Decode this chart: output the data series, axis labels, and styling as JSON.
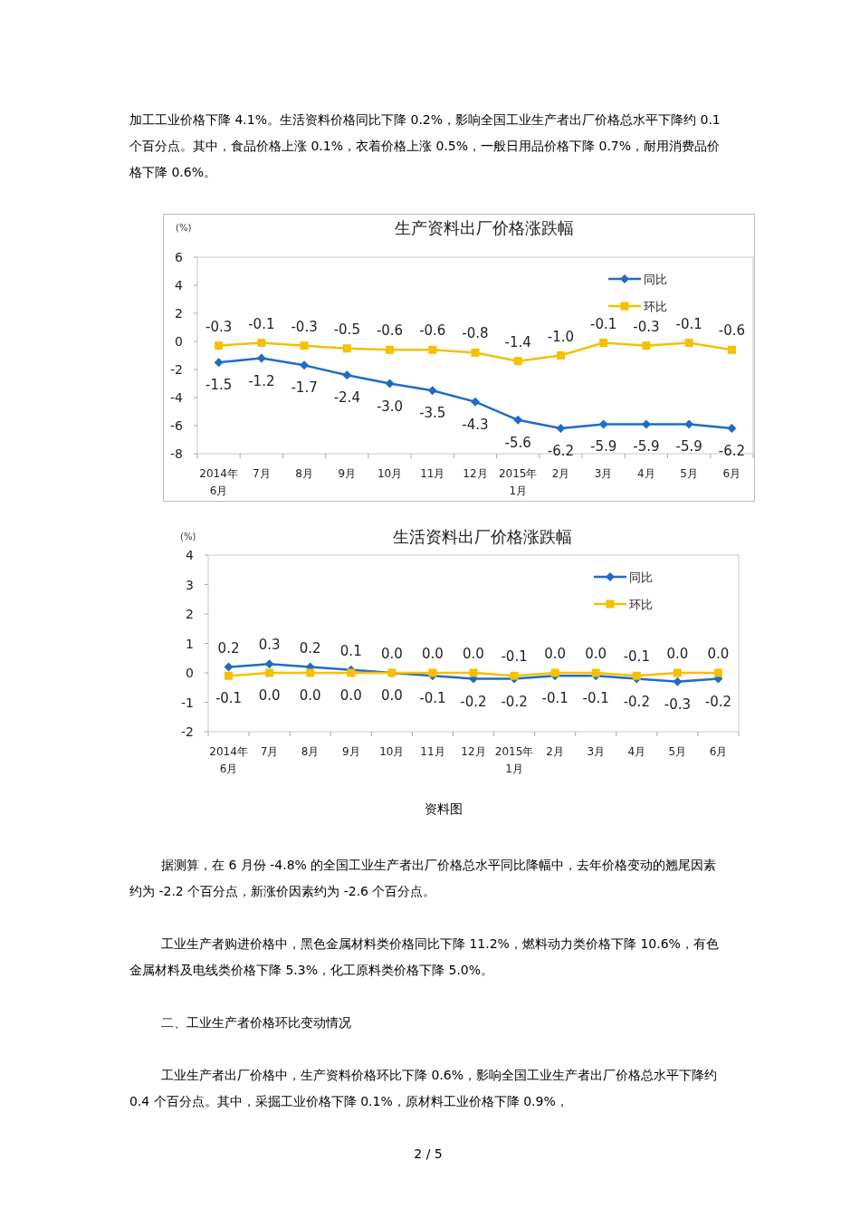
{
  "chart_data": [
    {
      "type": "other",
      "annotations": [
        "加工工业价格下降 4.1%。生活资料价格同比下降 0.2%，影响全国工业生产者出厂价格总水平下降约 0.1 个百分点。其中，食品价格上涨 0.1%，衣着价格上涨 0.5%，一般日用品价格下降 0.7%，耐用消费品价格下降 0.6%。"
      ]
    },
    {
      "type": "line",
      "title": "生产资料出厂价格涨跌幅",
      "ylabel": "(%)",
      "categories": [
        "2014年\n6月",
        "7月",
        "8月",
        "9月",
        "10月",
        "11月",
        "12月",
        "2015年\n1月",
        "2月",
        "3月",
        "4月",
        "5月",
        "6月"
      ],
      "series": [
        {
          "name": "同比",
          "color": "#1f6cc7",
          "marker": "diamond",
          "values": [
            -1.5,
            -1.2,
            -1.7,
            -2.4,
            -3.0,
            -3.5,
            -4.3,
            -5.6,
            -6.2,
            -5.9,
            -5.9,
            -5.9,
            -6.2
          ],
          "value_labels": [
            "-1.5",
            "-1.2",
            "-1.7",
            "-2.4",
            "-3.0",
            "-3.5",
            "-4.3",
            "-5.6",
            "-6.2",
            "-5.9",
            "-5.9",
            "-5.9",
            "-6.2"
          ]
        },
        {
          "name": "环比",
          "color": "#f5c000",
          "marker": "square",
          "values": [
            -0.3,
            -0.1,
            -0.3,
            -0.5,
            -0.6,
            -0.6,
            -0.8,
            -1.4,
            -1.0,
            -0.1,
            -0.3,
            -0.1,
            -0.6
          ],
          "value_labels": [
            "-0.3",
            "-0.1",
            "-0.3",
            "-0.5",
            "-0.6",
            "-0.6",
            "-0.8",
            "-1.4",
            "-1.0",
            "-0.1",
            "-0.3",
            "-0.1",
            "-0.6"
          ]
        }
      ],
      "ylim": [
        -8,
        6
      ],
      "yticks": [
        -8,
        -6,
        -4,
        -2,
        0,
        2,
        4,
        6
      ],
      "grid": false,
      "legend": "top right"
    },
    {
      "type": "line",
      "title": "生活资料出厂价格涨跌幅",
      "ylabel": "(%)",
      "categories": [
        "2014年\n6月",
        "7月",
        "8月",
        "9月",
        "10月",
        "11月",
        "12月",
        "2015年\n1月",
        "2月",
        "3月",
        "4月",
        "5月",
        "6月"
      ],
      "series": [
        {
          "name": "同比",
          "color": "#1f6cc7",
          "marker": "diamond",
          "values": [
            0.2,
            0.3,
            0.2,
            0.1,
            0.0,
            -0.1,
            -0.2,
            -0.2,
            -0.1,
            -0.1,
            -0.2,
            -0.3,
            -0.2
          ],
          "value_labels": [
            "0.2",
            "0.3",
            "0.2",
            "0.1",
            "0.0",
            "-0.1",
            "-0.2",
            "-0.2",
            "-0.1",
            "-0.1",
            "-0.2",
            "-0.3",
            "-0.2"
          ]
        },
        {
          "name": "环比",
          "color": "#f5c000",
          "marker": "square",
          "values": [
            -0.1,
            0.0,
            0.0,
            0.0,
            0.0,
            0.0,
            0.0,
            -0.1,
            0.0,
            0.0,
            -0.1,
            0.0,
            0.0
          ],
          "value_labels": [
            "-0.1",
            "0.0",
            "0.0",
            "0.0",
            "0.0",
            "0.0",
            "0.0",
            "-0.1",
            "0.0",
            "0.0",
            "-0.1",
            "0.0",
            "0.0"
          ]
        }
      ],
      "ylim": [
        -2,
        4
      ],
      "yticks": [
        -2,
        -1,
        0,
        1,
        2,
        3,
        4
      ],
      "grid": false,
      "legend": "top right",
      "annotations": [
        "资料图"
      ]
    },
    {
      "type": "other",
      "annotations": [
        "据测算，在 6 月份 -4.8% 的全国工业生产者出厂价格总水平同比降幅中，去年价格变动的翘尾因素约为 -2.2 个百分点，新涨价因素约为 -2.6 个百分点。",
        "工业生产者购进价格中，黑色金属材料类价格同比下降 11.2%，燃料动力类价格下降 10.6%，有色金属材料及电线类价格下降 5.3%，化工原料类价格下降 5.0%。",
        "二、工业生产者价格环比变动情况",
        "工业生产者出厂价格中，生产资料价格环比下降 0.6%，影响全国工业生产者出厂价格总水平下降约 0.4 个百分点。其中，采掘工业价格下降 0.1%，原材料工业价格下降 0.9%，",
        "2 / 5"
      ]
    }
  ]
}
